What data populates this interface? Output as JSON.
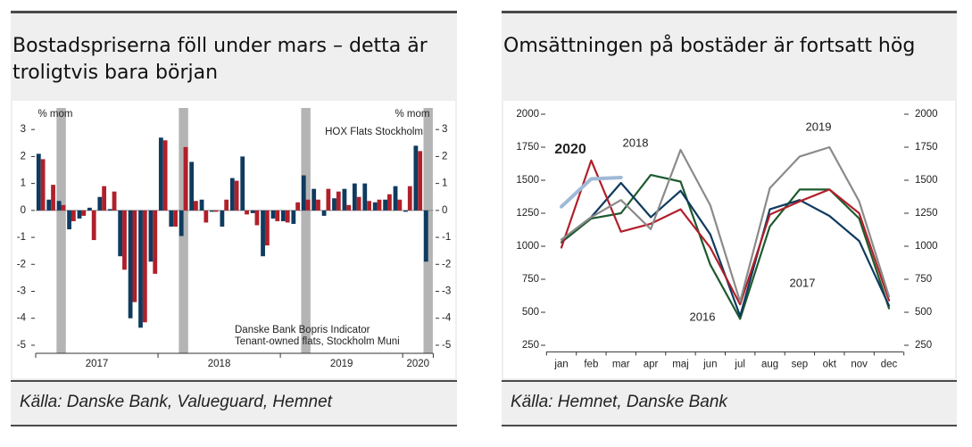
{
  "chart_data": [
    {
      "type": "bar",
      "title": "Bostadspriserna föll under mars – detta är troligtvis bara början",
      "source": "Källa: Danske Bank, Valueguard, Hemnet",
      "ylabel": "% mom",
      "y2label": "% mom",
      "categories": [
        "2017",
        null,
        null,
        null,
        null,
        null,
        null,
        null,
        null,
        null,
        null,
        null,
        "2018",
        null,
        null,
        null,
        null,
        null,
        null,
        null,
        null,
        null,
        null,
        null,
        "2019",
        null,
        null,
        null,
        null,
        null,
        null,
        null,
        null,
        null,
        null,
        null,
        "2020",
        null,
        null
      ],
      "series": [
        {
          "name": [
            "Danske Bank Bopris Indicator",
            "Tenant-owned flats, Stockholm Muni"
          ],
          "color": "#0f3b5f",
          "values": [
            2.1,
            0.4,
            0.35,
            -0.7,
            -0.3,
            0.1,
            0.5,
            0.05,
            -1.7,
            -4.0,
            -4.35,
            -1.9,
            2.7,
            -0.6,
            -0.95,
            1.8,
            0.4,
            -0.05,
            -0.6,
            1.2,
            2.0,
            -0.1,
            -1.7,
            -0.3,
            -0.4,
            -0.5,
            1.3,
            0.8,
            -0.2,
            0.45,
            0.8,
            1.0,
            1.0,
            0.3,
            0.4,
            0.9,
            -0.05,
            2.4,
            -1.9
          ]
        },
        {
          "name": "HOX Flats Stockholm",
          "color": "#b0202a",
          "values": [
            1.9,
            0.95,
            0.2,
            -0.4,
            -0.2,
            -1.1,
            0.9,
            0.7,
            -2.2,
            -3.4,
            -4.15,
            -2.35,
            2.6,
            -0.6,
            2.35,
            0.35,
            -0.45,
            -0.05,
            0.4,
            1.1,
            -0.15,
            -0.55,
            -1.3,
            -0.4,
            -0.45,
            0.3,
            0.4,
            0.4,
            0.8,
            0.7,
            0.2,
            0.5,
            0.35,
            0.4,
            0.6,
            0.4,
            0.9,
            2.2,
            null
          ]
        }
      ],
      "ylim": [
        -5.3,
        3.8
      ],
      "yticks": [
        -5,
        -4,
        -3,
        -2,
        -1,
        0,
        1,
        2,
        3
      ]
    },
    {
      "type": "line",
      "title": "Omsättningen på bostäder är fortsatt hög",
      "source": "Källa: Hemnet, Danske Bank",
      "categories": [
        "jan",
        "feb",
        "mar",
        "apr",
        "maj",
        "jun",
        "jul",
        "aug",
        "sep",
        "okt",
        "nov",
        "dec"
      ],
      "series": [
        {
          "name": "2016",
          "color": "#1d5a2e",
          "values": [
            1030,
            1210,
            1250,
            1540,
            1490,
            860,
            450,
            1150,
            1430,
            1430,
            1210,
            530
          ]
        },
        {
          "name": "2017",
          "color": "#0f3b5f",
          "values": [
            1050,
            1220,
            1480,
            1220,
            1420,
            1090,
            470,
            1280,
            1350,
            1230,
            1040,
            550
          ]
        },
        {
          "name": "2018",
          "color": "#b0202a",
          "values": [
            990,
            1650,
            1110,
            1170,
            1280,
            990,
            560,
            1240,
            1340,
            1430,
            1250,
            590
          ]
        },
        {
          "name": "2019",
          "color": "#8a8a8a",
          "values": [
            1050,
            1220,
            1350,
            1130,
            1730,
            1310,
            580,
            1440,
            1680,
            1750,
            1340,
            620
          ]
        },
        {
          "name": "2020",
          "color": "#9fb9d6",
          "values": [
            1300,
            1510,
            1520,
            null,
            null,
            null,
            null,
            null,
            null,
            null,
            null,
            null
          ]
        }
      ],
      "ylim": [
        200,
        2050
      ],
      "yticks": [
        250,
        500,
        750,
        1000,
        1250,
        1500,
        1750,
        2000
      ]
    }
  ]
}
